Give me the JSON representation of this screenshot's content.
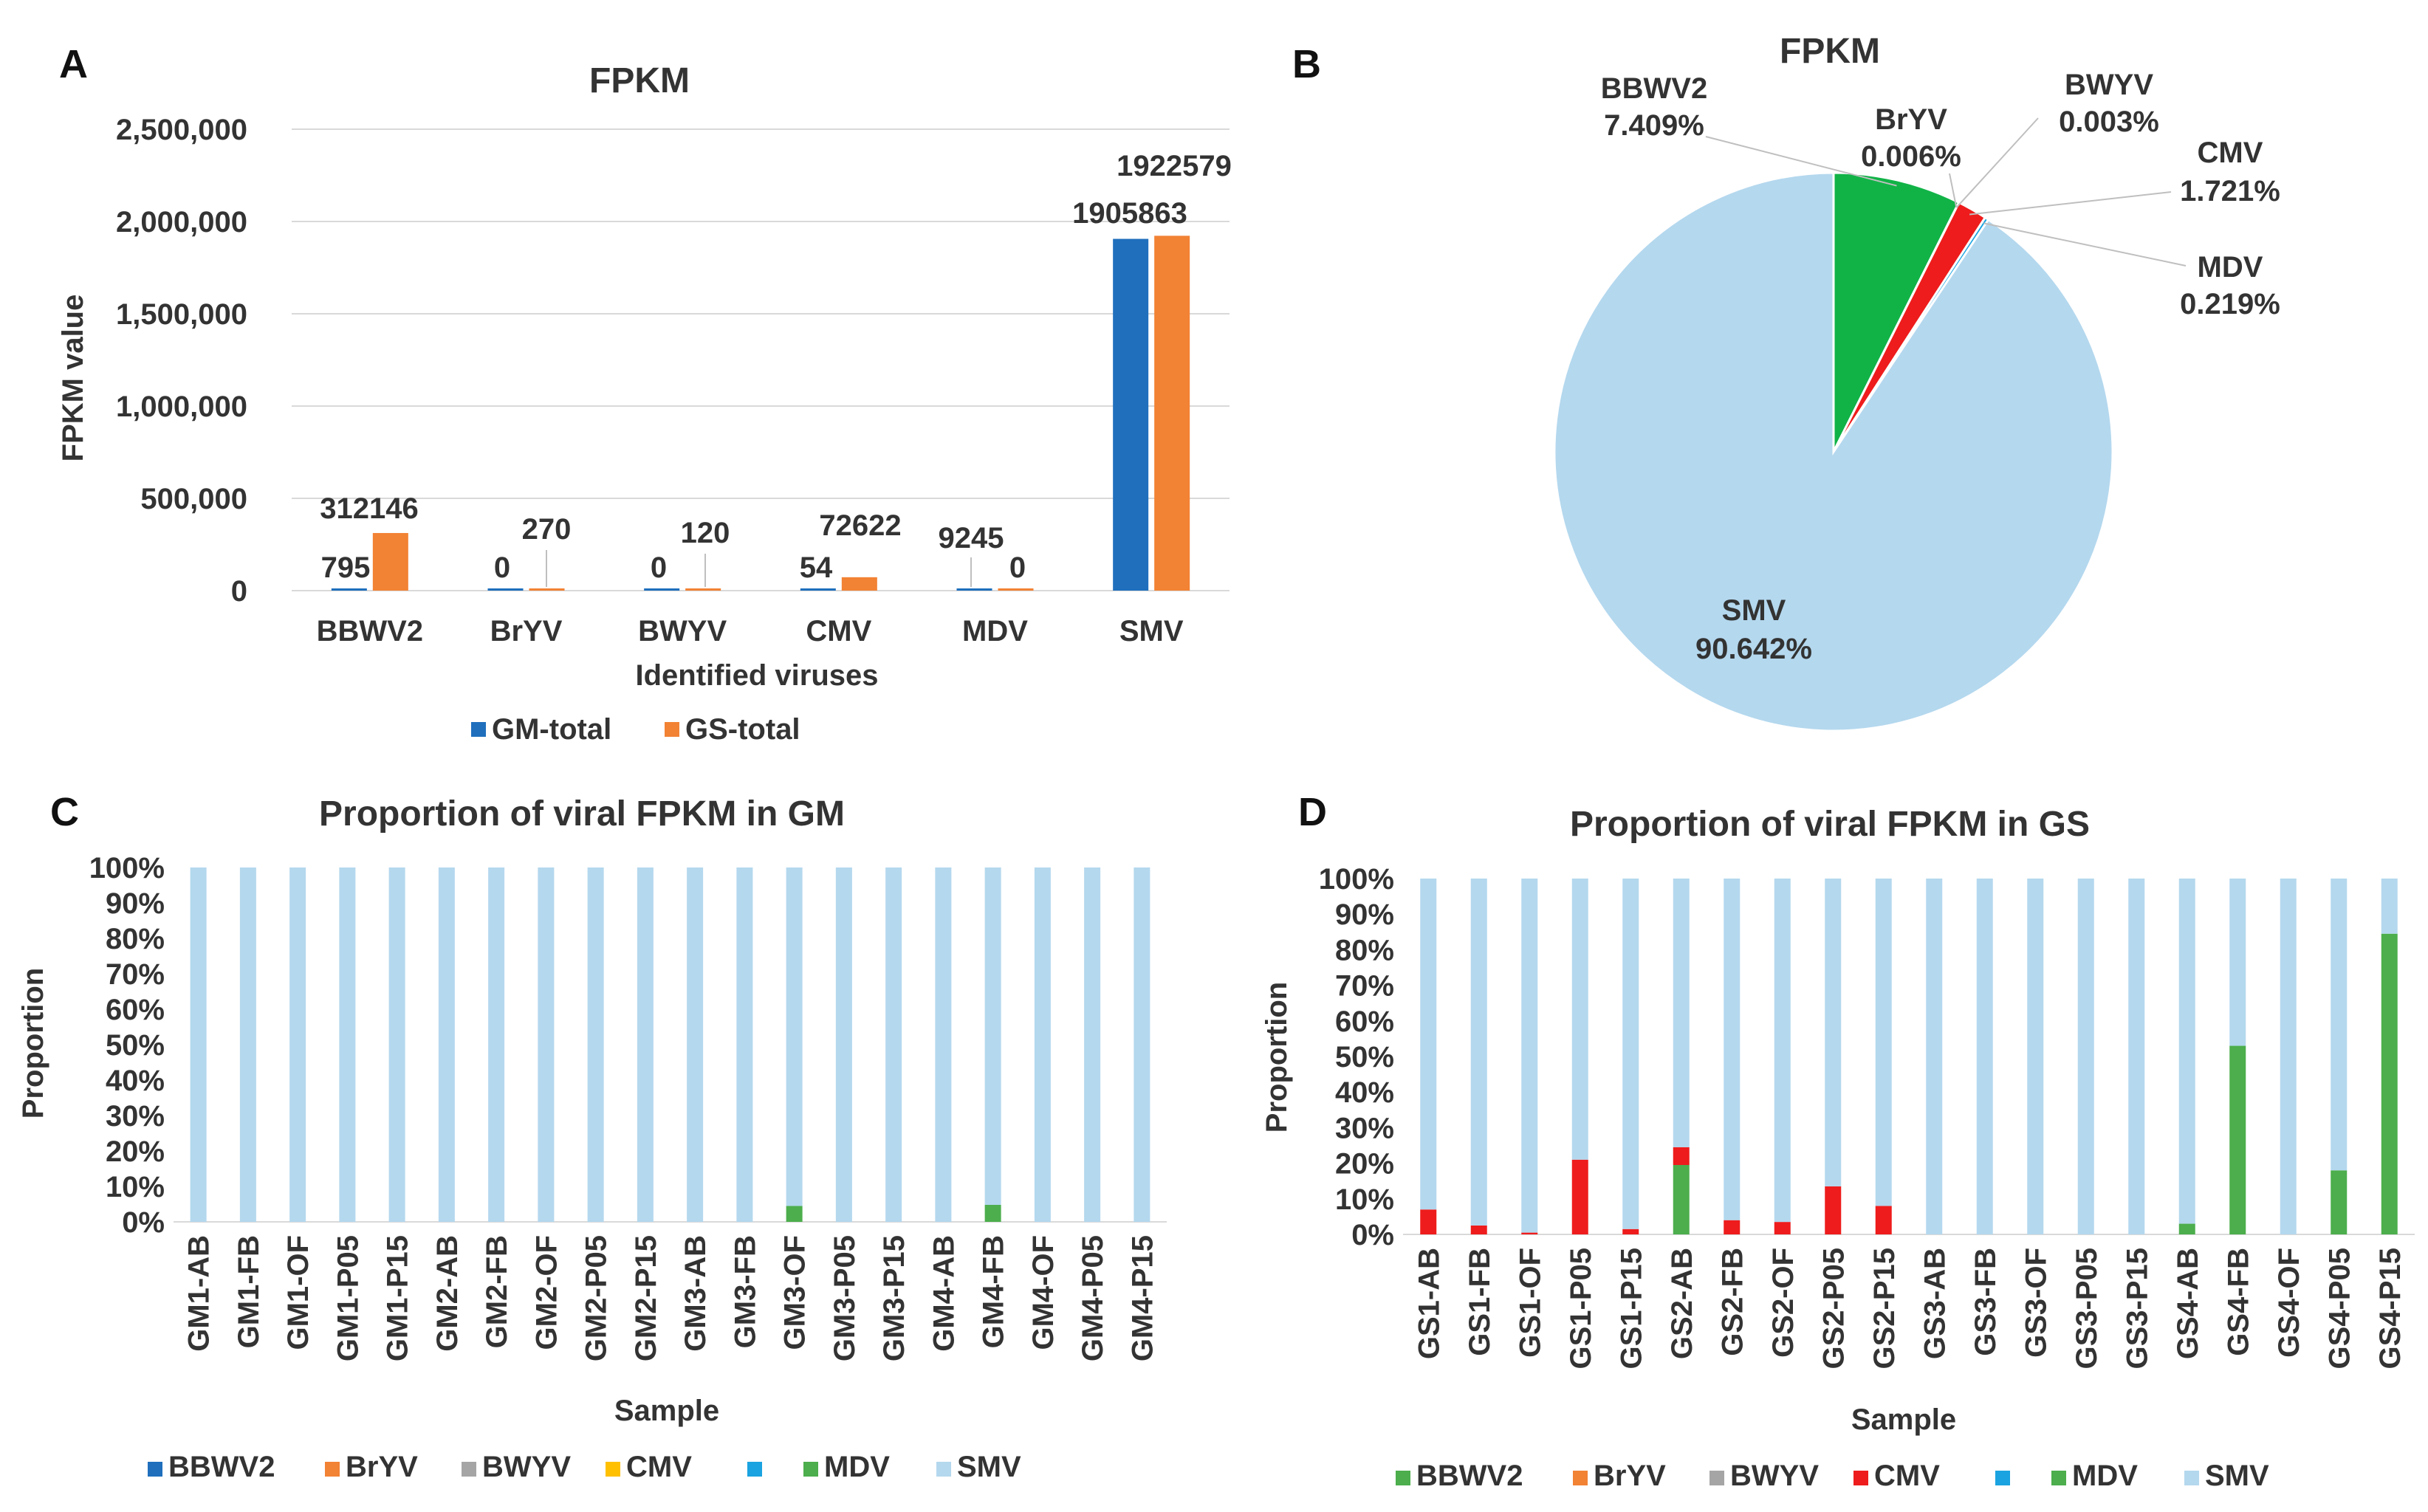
{
  "colors": {
    "BBWV2_blue": "#1f6fbd",
    "BrYV": "#f28234",
    "BWYV": "#a5a5a5",
    "CMV_yellow": "#ffc000",
    "MDV_blue": "#1aa3e0",
    "MDV_green": "#4cae4c",
    "SMV": "#b4d8ee",
    "CMV_red": "#ee1c1c",
    "BBWV2_pie": "#11b347",
    "GM_total": "#1f6fbd",
    "GS_total": "#f28234"
  },
  "panels": {
    "a": "A",
    "b": "B",
    "c": "C",
    "d": "D"
  },
  "chart_data": [
    {
      "id": "A",
      "type": "bar",
      "title": "FPKM",
      "xlabel": "Identified viruses",
      "ylabel": "FPKM value",
      "ylim": [
        0,
        2500000
      ],
      "yticks": [
        0,
        500000,
        1000000,
        1500000,
        2000000,
        2500000
      ],
      "ytick_labels": [
        "0",
        "500,000",
        "1,000,000",
        "1,500,000",
        "2,000,000",
        "2,500,000"
      ],
      "categories": [
        "BBWV2",
        "BrYV",
        "BWYV",
        "CMV",
        "MDV",
        "SMV"
      ],
      "series": [
        {
          "name": "GM-total",
          "values": [
            795,
            0,
            0,
            54,
            9245,
            1905863
          ],
          "labels": [
            "795",
            "0",
            "0",
            "54",
            "9245",
            "1905863"
          ]
        },
        {
          "name": "GS-total",
          "values": [
            312146,
            270,
            120,
            72622,
            0,
            1922579
          ],
          "labels": [
            "312146",
            "270",
            "120",
            "72622",
            "0",
            "1922579"
          ]
        }
      ],
      "legend": "bottom"
    },
    {
      "id": "B",
      "type": "pie",
      "title": "FPKM",
      "slices": [
        {
          "name": "BBWV2",
          "value": 7.409,
          "label": "7.409%"
        },
        {
          "name": "BrYV",
          "value": 0.006,
          "label": "0.006%"
        },
        {
          "name": "BWYV",
          "value": 0.003,
          "label": "0.003%"
        },
        {
          "name": "CMV",
          "value": 1.721,
          "label": "1.721%"
        },
        {
          "name": "MDV",
          "value": 0.219,
          "label": "0.219%"
        },
        {
          "name": "SMV",
          "value": 90.642,
          "label": "90.642%"
        }
      ]
    },
    {
      "id": "C",
      "type": "bar",
      "stacked": "percent",
      "title": "Proportion of viral FPKM in GM",
      "xlabel": "Sample",
      "ylabel": "Proportion",
      "ylim": [
        0,
        100
      ],
      "ytick_labels": [
        "0%",
        "10%",
        "20%",
        "30%",
        "40%",
        "50%",
        "60%",
        "70%",
        "80%",
        "90%",
        "100%"
      ],
      "categories": [
        "GM1-AB",
        "GM1-FB",
        "GM1-OF",
        "GM1-P05",
        "GM1-P15",
        "GM2-AB",
        "GM2-FB",
        "GM2-OF",
        "GM2-P05",
        "GM2-P15",
        "GM3-AB",
        "GM3-FB",
        "GM3-OF",
        "GM3-P05",
        "GM3-P15",
        "GM4-AB",
        "GM4-FB",
        "GM4-OF",
        "GM4-P05",
        "GM4-P15"
      ],
      "series": [
        {
          "name": "BBWV2",
          "values": [
            0,
            0,
            0,
            0,
            0,
            0,
            0,
            0,
            0,
            0,
            0,
            0,
            0,
            0,
            0,
            0,
            0,
            0,
            0,
            0
          ]
        },
        {
          "name": "BrYV",
          "values": [
            0,
            0,
            0,
            0,
            0,
            0,
            0,
            0,
            0,
            0,
            0,
            0,
            0,
            0,
            0,
            0,
            0,
            0,
            0,
            0
          ]
        },
        {
          "name": "BWYV",
          "values": [
            0,
            0,
            0,
            0,
            0,
            0,
            0,
            0,
            0,
            0,
            0,
            0,
            0,
            0,
            0,
            0,
            0,
            0,
            0,
            0
          ]
        },
        {
          "name": "CMV",
          "values": [
            0,
            0,
            0,
            0,
            0,
            0,
            0,
            0,
            0,
            0,
            0,
            0,
            0,
            0,
            0,
            0,
            0,
            0,
            0,
            0
          ]
        },
        {
          "name": "",
          "values": [
            0,
            0,
            0,
            0,
            0,
            0,
            0,
            0,
            0,
            0,
            0,
            0,
            0,
            0,
            0,
            0,
            0,
            0,
            0,
            0
          ]
        },
        {
          "name": "MDV",
          "values": [
            0,
            0,
            0,
            0,
            0,
            0,
            0,
            0,
            0,
            0,
            0,
            0,
            4.5,
            0,
            0,
            0,
            4.8,
            0,
            0,
            0
          ]
        },
        {
          "name": "SMV",
          "values": [
            100,
            100,
            100,
            100,
            100,
            100,
            100,
            100,
            100,
            100,
            100,
            100,
            95.5,
            100,
            100,
            100,
            95.2,
            100,
            100,
            100
          ]
        }
      ],
      "legend": "bottom"
    },
    {
      "id": "D",
      "type": "bar",
      "stacked": "percent",
      "title": "Proportion of viral FPKM in GS",
      "xlabel": "Sample",
      "ylabel": "Proportion",
      "ylim": [
        0,
        100
      ],
      "ytick_labels": [
        "0%",
        "10%",
        "20%",
        "30%",
        "40%",
        "50%",
        "60%",
        "70%",
        "80%",
        "90%",
        "100%"
      ],
      "categories": [
        "GS1-AB",
        "GS1-FB",
        "GS1-OF",
        "GS1-P05",
        "GS1-P15",
        "GS2-AB",
        "GS2-FB",
        "GS2-OF",
        "GS2-P05",
        "GS2-P15",
        "GS3-AB",
        "GS3-FB",
        "GS3-OF",
        "GS3-P05",
        "GS3-P15",
        "GS4-AB",
        "GS4-FB",
        "GS4-OF",
        "GS4-P05",
        "GS4-P15"
      ],
      "series": [
        {
          "name": "BBWV2",
          "values": [
            0,
            0,
            0,
            0,
            0,
            19.5,
            0,
            0,
            0,
            0,
            0,
            0,
            0,
            0,
            0,
            3,
            53,
            0,
            18,
            84.5
          ]
        },
        {
          "name": "BrYV",
          "values": [
            0,
            0,
            0,
            0,
            0,
            0,
            0,
            0,
            0,
            0,
            0,
            0,
            0,
            0,
            0,
            0,
            0,
            0,
            0,
            0
          ]
        },
        {
          "name": "BWYV",
          "values": [
            0,
            0,
            0,
            0,
            0,
            0,
            0,
            0,
            0,
            0,
            0,
            0,
            0,
            0,
            0,
            0,
            0,
            0,
            0,
            0
          ]
        },
        {
          "name": "CMV",
          "values": [
            7,
            2.5,
            0.5,
            21,
            1.5,
            5,
            4,
            3.5,
            13.5,
            8,
            0,
            0,
            0,
            0,
            0,
            0,
            0,
            0,
            0,
            0
          ]
        },
        {
          "name": "",
          "values": [
            0,
            0,
            0,
            0,
            0,
            0,
            0,
            0,
            0,
            0,
            0,
            0,
            0,
            0,
            0,
            0,
            0,
            0,
            0,
            0
          ]
        },
        {
          "name": "MDV",
          "values": [
            0,
            0,
            0,
            0,
            0,
            0,
            0,
            0,
            0,
            0,
            0,
            0,
            0,
            0,
            0,
            0,
            0,
            0,
            0,
            0
          ]
        },
        {
          "name": "SMV",
          "values": [
            93,
            97.5,
            99.5,
            79,
            98.5,
            75.5,
            96,
            96.5,
            86.5,
            92,
            100,
            100,
            100,
            100,
            100,
            97,
            47,
            100,
            82,
            15.5
          ]
        }
      ],
      "legend": "bottom"
    }
  ]
}
